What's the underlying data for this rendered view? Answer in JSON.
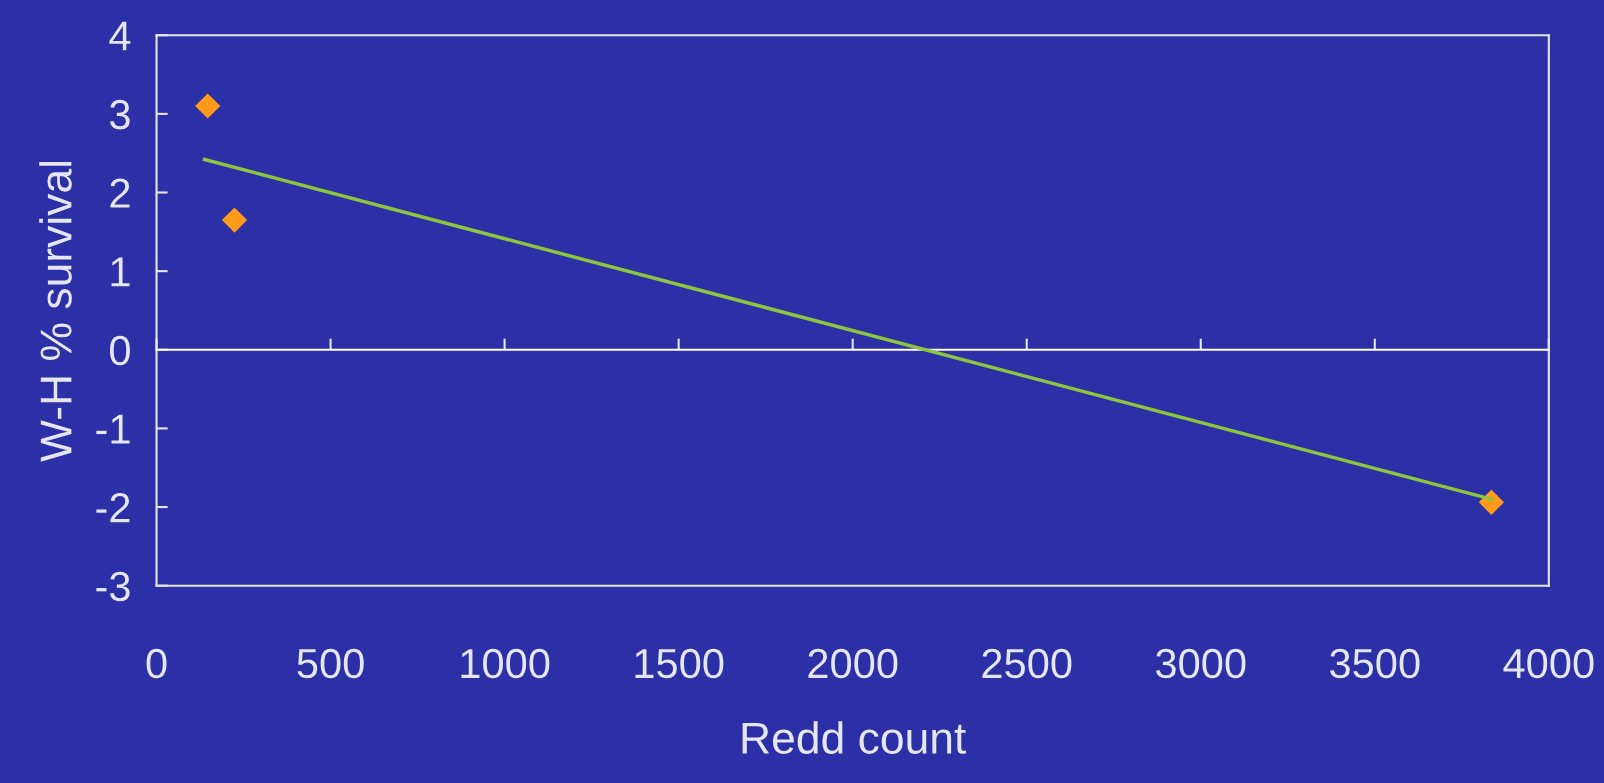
{
  "chart_data": {
    "type": "scatter",
    "xlabel": "Redd count",
    "ylabel": "W-H % survival",
    "xlim": [
      0,
      4000
    ],
    "xticks": [
      0,
      500,
      1000,
      1500,
      2000,
      2500,
      3000,
      3500,
      4000
    ],
    "ylim": [
      -3,
      4
    ],
    "yticks": [
      -3,
      -2,
      -1,
      0,
      1,
      2,
      3,
      4
    ],
    "marker": "diamond",
    "grid": false,
    "legend": false,
    "ref_lines": [
      {
        "axis": "y",
        "value": 0,
        "color": "#ffffff"
      }
    ],
    "series": [
      {
        "color": "#ff9a1a",
        "x": [
          147,
          224,
          3835
        ],
        "values": [
          3.1,
          1.65,
          -1.94
        ]
      },
      {
        "type": "line",
        "marker": "none",
        "color": "#8cc63f",
        "x": [
          138,
          3835
        ],
        "values": [
          2.42,
          -1.9
        ]
      }
    ]
  }
}
